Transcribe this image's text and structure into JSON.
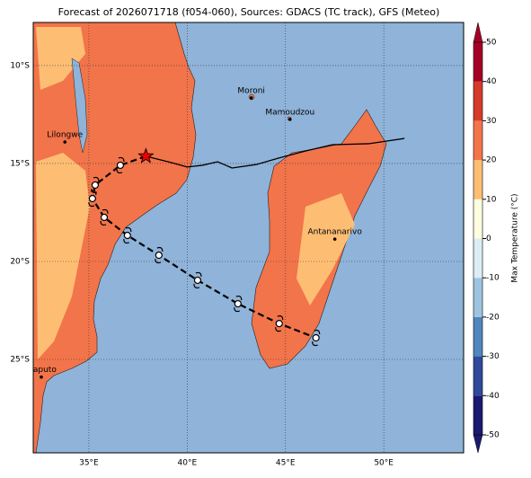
{
  "title": "Forecast of 2026071718 (f054-060), Sources: GDACS (TC track), GFS (Meteo)",
  "map": {
    "lonlim": [
      32.17,
      54.06
    ],
    "latlim": [
      -29.77,
      -7.8
    ],
    "lonticks": [
      {
        "value": 35,
        "label": "35°E"
      },
      {
        "value": 40,
        "label": "40°E"
      },
      {
        "value": 45,
        "label": "45°E"
      },
      {
        "value": 50,
        "label": "50°E"
      }
    ],
    "latticks": [
      {
        "value": -10,
        "label": "10°S"
      },
      {
        "value": -15,
        "label": "15°S"
      },
      {
        "value": -20,
        "label": "20°S"
      },
      {
        "value": -25,
        "label": "25°S"
      }
    ],
    "cities": [
      {
        "name": "Moroni",
        "lon": 43.26,
        "lat": -11.65
      },
      {
        "name": "Mamoudzou",
        "lon": 45.23,
        "lat": -12.75
      },
      {
        "name": "Lilongwe",
        "lon": 33.78,
        "lat": -13.9
      },
      {
        "name": "Antananarivo",
        "lon": 47.51,
        "lat": -18.86
      },
      {
        "name": "Maputo",
        "lon": 32.58,
        "lat": -25.9
      }
    ],
    "track": {
      "lon": [
        37.9,
        36.6,
        35.32,
        35.18,
        35.78,
        36.96,
        38.56,
        40.53,
        42.58,
        44.68,
        46.55
      ],
      "lat": [
        -14.63,
        -15.09,
        -16.1,
        -16.79,
        -17.75,
        -18.67,
        -19.68,
        -20.96,
        -22.16,
        -23.17,
        -23.9
      ]
    },
    "model_line": {
      "lon": [
        37.9,
        39.18,
        40.0,
        40.78,
        41.55,
        42.28,
        43.52,
        44.66,
        46.03,
        47.4,
        49.23,
        51.05
      ],
      "lat": [
        -14.63,
        -14.95,
        -15.18,
        -15.09,
        -14.91,
        -15.23,
        -15.05,
        -14.72,
        -14.36,
        -14.04,
        -13.99,
        -13.72
      ]
    }
  },
  "colorbar": {
    "label": "Max Temperature (°C)",
    "lim": [
      -50,
      50
    ],
    "ticks": [
      -50,
      -40,
      -30,
      -20,
      -10,
      0,
      10,
      20,
      30,
      40,
      50
    ],
    "colors": [
      "#1a1a70",
      "#2f4a9c",
      "#4f86bd",
      "#9ec5df",
      "#dcedf5",
      "#fffde0",
      "#fdbe74",
      "#f4744a",
      "#d63a2a",
      "#a50026"
    ]
  }
}
